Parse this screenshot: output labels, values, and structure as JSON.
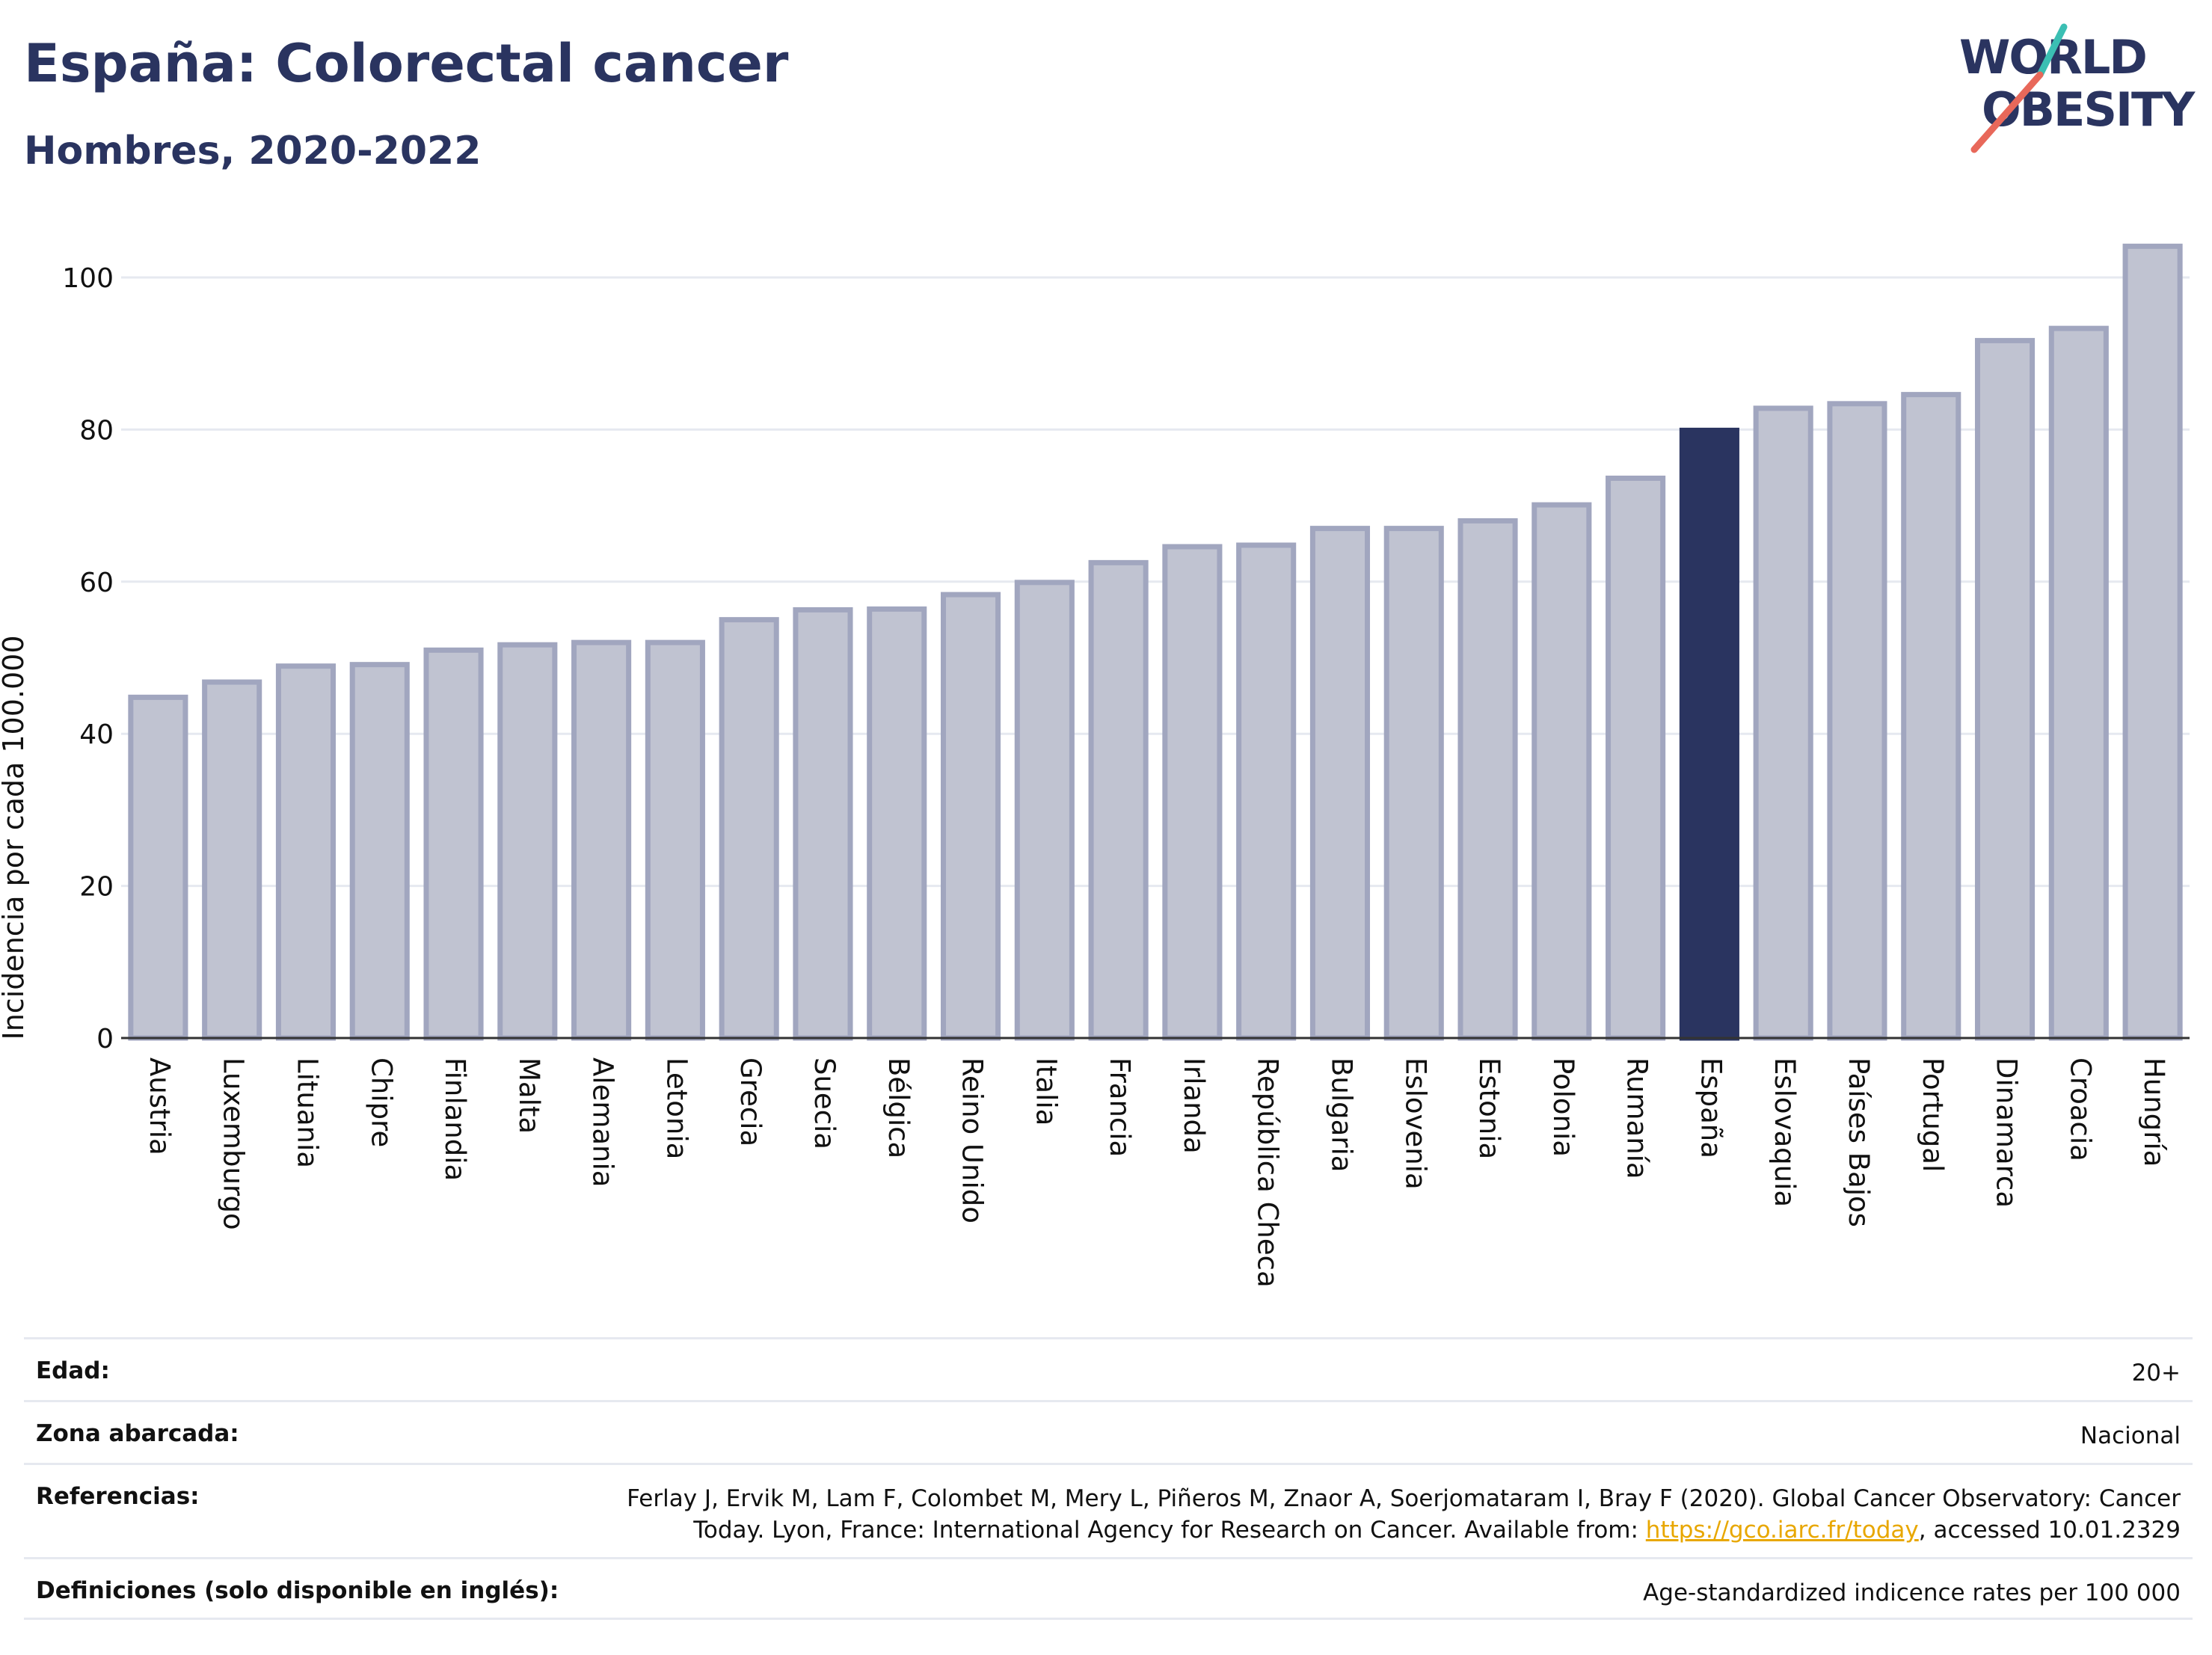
{
  "header": {
    "title": "España: Colorectal cancer",
    "subtitle": "Hombres, 2020-2022"
  },
  "logo": {
    "line1": "WORLD",
    "line2": "OBESITY",
    "accent_colors": [
      "#3bbfb3",
      "#e8685a"
    ]
  },
  "colors": {
    "highlight": "#2a3460",
    "bar_fill": "#c0c3d1",
    "bar_stroke": "#a1a6bf",
    "grid": "#e6e9f0",
    "link": "#e8a700"
  },
  "chart_data": {
    "type": "bar",
    "ylabel": "Incidencia por cada 100.000",
    "ylim": [
      0,
      108
    ],
    "yticks": [
      0,
      20,
      40,
      60,
      80,
      100
    ],
    "grid": true,
    "highlight_category": "España",
    "categories": [
      "Austria",
      "Luxemburgo",
      "Lituania",
      "Chipre",
      "Finlandia",
      "Malta",
      "Alemania",
      "Letonia",
      "Grecia",
      "Suecia",
      "Bélgica",
      "Reino Unido",
      "Italia",
      "Francia",
      "Irlanda",
      "República Checa",
      "Bulgaria",
      "Eslovenia",
      "Estonia",
      "Polonia",
      "Rumanía",
      "España",
      "Eslovaquia",
      "Países Bajos",
      "Portugal",
      "Dinamarca",
      "Croacia",
      "Hungría"
    ],
    "values": [
      44.8,
      46.8,
      48.9,
      49.1,
      51.0,
      51.7,
      52.0,
      52.0,
      55.0,
      56.3,
      56.4,
      58.3,
      59.9,
      62.5,
      64.6,
      64.8,
      67.0,
      67.0,
      68.0,
      70.1,
      73.6,
      79.9,
      82.8,
      83.4,
      84.6,
      91.7,
      93.3,
      104.1
    ]
  },
  "info_table": [
    {
      "key": "Edad:",
      "value": "20+"
    },
    {
      "key": "Zona abarcada:",
      "value": "Nacional"
    },
    {
      "key": "Referencias:",
      "value_line1": "Ferlay J, Ervik M, Lam F, Colombet M, Mery L, Piñeros M, Znaor A, Soerjomataram I, Bray F (2020). Global Cancer Observatory: Cancer",
      "value_line2_pre": "Today. Lyon, France: International Agency for Research on Cancer. Available from: ",
      "value_link": "https://gco.iarc.fr/today",
      "value_line2_post": ", accessed 10.01.2329"
    },
    {
      "key": "Definiciones (solo disponible en inglés):",
      "value": "Age-standardized indicence rates per 100 000"
    }
  ]
}
